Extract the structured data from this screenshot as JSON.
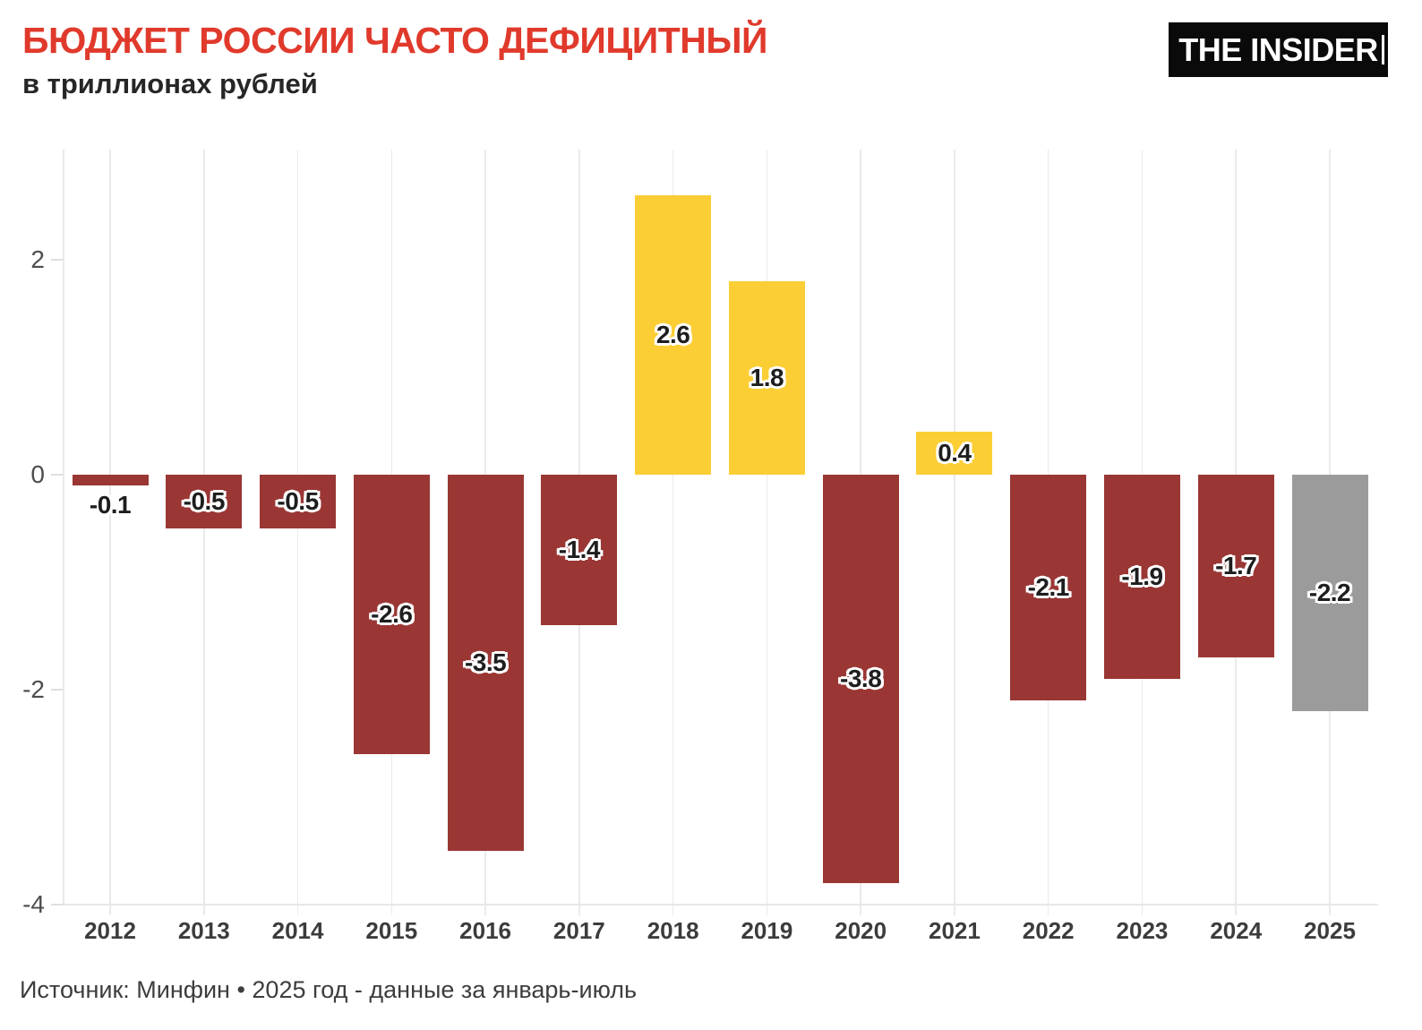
{
  "header": {
    "title": "БЮДЖЕТ РОССИИ ЧАСТО ДЕФИЦИТНЫЙ",
    "subtitle": "в триллионах рублей",
    "logo_text": "THE INSIDER"
  },
  "footer": {
    "source": "Источник: Минфин • 2025 год - данные за январь-июль"
  },
  "colors": {
    "title_red": "#E03A2C",
    "deficit_red": "#9A3735",
    "surplus_yellow": "#FCCE36",
    "forecast_gray": "#9B9B9B",
    "logo_bg": "#0A0A0A",
    "grid": "#EAEAEA",
    "y_axis_text": "#4D4D4D",
    "x_axis_text": "#3C3C3C"
  },
  "chart_data": {
    "type": "bar",
    "title": "БЮДЖЕТ РОССИИ ЧАСТО ДЕФИЦИТНЫЙ",
    "subtitle": "в триллионах рублей",
    "unit": "триллионы рублей",
    "categories": [
      "2012",
      "2013",
      "2014",
      "2015",
      "2016",
      "2017",
      "2018",
      "2019",
      "2020",
      "2021",
      "2022",
      "2023",
      "2024",
      "2025"
    ],
    "values": [
      -0.1,
      -0.5,
      -0.5,
      -2.6,
      -3.5,
      -1.4,
      2.6,
      1.8,
      -3.8,
      0.4,
      -2.1,
      -1.9,
      -1.7,
      -2.2
    ],
    "labels": [
      "-0.1",
      "-0.5",
      "-0.5",
      "-2.6",
      "-3.5",
      "-1.4",
      "2.6",
      "1.8",
      "-3.8",
      "0.4",
      "-2.1",
      "-1.9",
      "-1.7",
      "-2.2"
    ],
    "roles": [
      "deficit",
      "deficit",
      "deficit",
      "deficit",
      "deficit",
      "deficit",
      "surplus",
      "surplus",
      "deficit",
      "surplus",
      "deficit",
      "deficit",
      "deficit",
      "forecast"
    ],
    "yticks": [
      "2",
      "0",
      "-2",
      "-4"
    ],
    "ytick_values": [
      2,
      0,
      -2,
      -4
    ],
    "ylim": [
      -4,
      2.8
    ],
    "grid": "vertical-only",
    "legend": "none",
    "xlabel": "",
    "ylabel": ""
  }
}
